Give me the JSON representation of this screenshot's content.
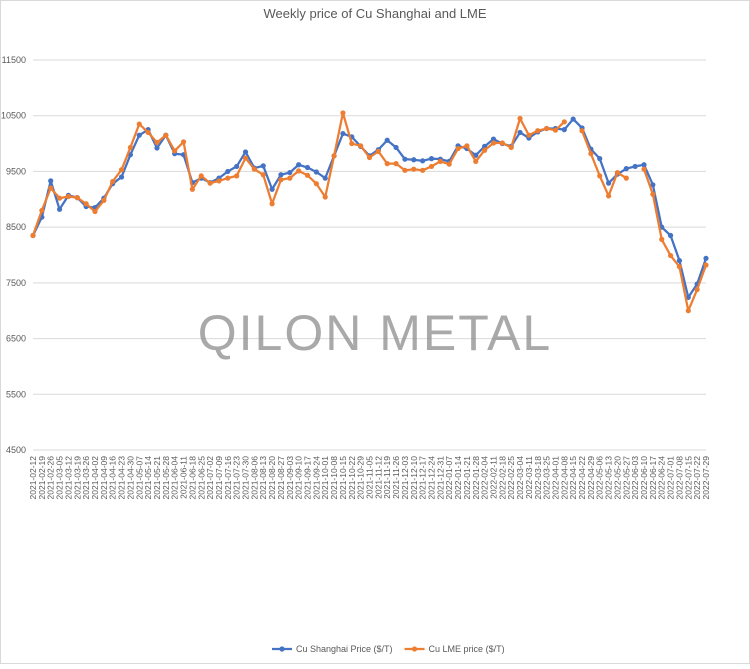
{
  "chart_data": {
    "type": "line",
    "title": "Weekly price of Cu Shanghai and LME",
    "watermark": "QILON METAL",
    "categories": [
      "2021-02-12",
      "2021-02-19",
      "2021-02-26",
      "2021-03-05",
      "2021-03-12",
      "2021-03-19",
      "2021-03-26",
      "2021-04-02",
      "2021-04-09",
      "2021-04-16",
      "2021-04-23",
      "2021-04-30",
      "2021-05-07",
      "2021-05-14",
      "2021-05-21",
      "2021-05-28",
      "2021-06-04",
      "2021-06-11",
      "2021-06-18",
      "2021-06-25",
      "2021-07-02",
      "2021-07-09",
      "2021-07-16",
      "2021-07-23",
      "2021-07-30",
      "2021-08-06",
      "2021-08-13",
      "2021-08-20",
      "2021-08-27",
      "2021-09-03",
      "2021-09-10",
      "2021-09-17",
      "2021-09-24",
      "2021-10-01",
      "2021-10-08",
      "2021-10-15",
      "2021-10-22",
      "2021-10-29",
      "2021-11-05",
      "2021-11-12",
      "2021-11-19",
      "2021-11-26",
      "2021-12-03",
      "2021-12-10",
      "2021-12-17",
      "2021-12-24",
      "2021-12-31",
      "2022-01-07",
      "2022-01-14",
      "2022-01-21",
      "2022-01-28",
      "2022-02-04",
      "2022-02-11",
      "2022-02-18",
      "2022-02-25",
      "2022-03-04",
      "2022-03-11",
      "2022-03-18",
      "2022-03-25",
      "2022-04-01",
      "2022-04-08",
      "2022-04-15",
      "2022-04-22",
      "2022-04-29",
      "2022-05-06",
      "2022-05-13",
      "2022-05-20",
      "2022-05-27",
      "2022-06-03",
      "2022-06-10",
      "2022-06-17",
      "2022-06-24",
      "2022-07-01",
      "2022-07-08",
      "2022-07-15",
      "2022-07-22",
      "2022-07-29"
    ],
    "series": [
      {
        "name": "Cu Shanghai Price ($/T)",
        "color": "#4472c4",
        "values": [
          8350,
          8680,
          9330,
          8820,
          9070,
          9030,
          8870,
          8850,
          9020,
          9280,
          9400,
          9800,
          10150,
          10250,
          9920,
          10150,
          9820,
          9800,
          9300,
          9380,
          9300,
          9380,
          9500,
          9590,
          9850,
          9560,
          9600,
          9180,
          9440,
          9480,
          9620,
          9570,
          9490,
          9380,
          9780,
          10180,
          10120,
          9950,
          9780,
          9890,
          10060,
          9930,
          9720,
          9710,
          9690,
          9730,
          9720,
          9680,
          9960,
          9910,
          9790,
          9950,
          10080,
          10000,
          9950,
          10200,
          10100,
          10210,
          10270,
          10270,
          10250,
          10440,
          10280,
          9900,
          9730,
          9290,
          9450,
          9550,
          9590,
          9620,
          9260,
          8500,
          8350,
          7900,
          7240,
          7480,
          7940
        ]
      },
      {
        "name": "Cu LME price ($/T)",
        "color": "#ed7d31",
        "values": [
          8350,
          8800,
          9200,
          9020,
          9050,
          9030,
          8920,
          8780,
          8980,
          9320,
          9530,
          9930,
          10350,
          10200,
          10020,
          10150,
          9870,
          10030,
          9180,
          9420,
          9290,
          9330,
          9380,
          9420,
          9740,
          9540,
          9440,
          8920,
          9350,
          9380,
          9510,
          9430,
          9280,
          9040,
          9780,
          10550,
          10000,
          9960,
          9750,
          9860,
          9640,
          9640,
          9520,
          9540,
          9520,
          9590,
          9680,
          9630,
          9910,
          9960,
          9680,
          9880,
          10010,
          10010,
          9930,
          10450,
          10150,
          10230,
          10270,
          10240,
          10390,
          null,
          10230,
          9820,
          9420,
          9060,
          9480,
          9380,
          null,
          9540,
          9090,
          8280,
          7990,
          7790,
          7000,
          7380,
          7820
        ]
      }
    ],
    "ylim": [
      4500,
      11500
    ],
    "yticks": [
      4500,
      5500,
      6500,
      7500,
      8500,
      9500,
      10500,
      11500
    ],
    "grid": true,
    "legend": "bottom"
  }
}
